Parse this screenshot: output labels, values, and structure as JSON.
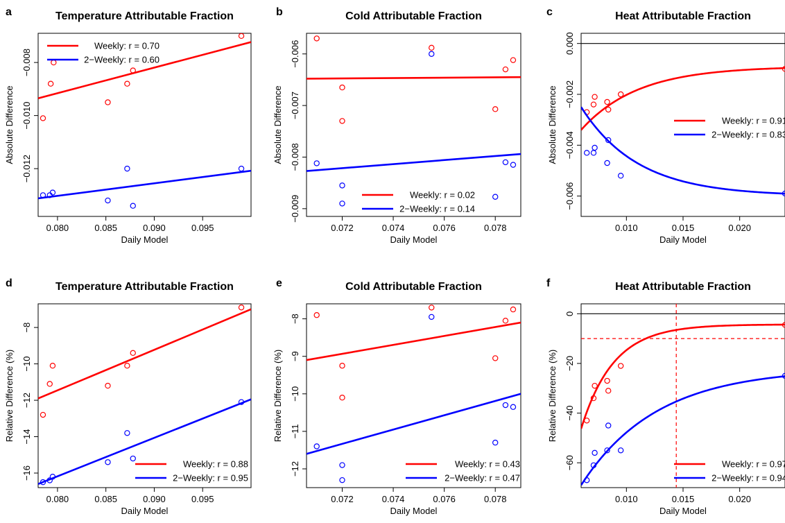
{
  "colors": {
    "weekly": "#ff0000",
    "biweekly": "#0000ff",
    "axis": "#000000"
  },
  "chart_data": [
    {
      "panel": "a",
      "type": "scatter",
      "title": "Temperature Attributable Fraction",
      "xlabel": "Daily Model",
      "ylabel": "Absolute Difference",
      "xlim": [
        0.078,
        0.1
      ],
      "ylim": [
        -0.0138,
        -0.0069
      ],
      "xticks": [
        {
          "v": 0.08,
          "label": "0.080"
        },
        {
          "v": 0.085,
          "label": "0.085"
        },
        {
          "v": 0.09,
          "label": "0.090"
        },
        {
          "v": 0.095,
          "label": "0.095"
        }
      ],
      "yticks": [
        {
          "v": -0.008,
          "label": "−0.008"
        },
        {
          "v": -0.01,
          "label": "−0.010"
        },
        {
          "v": -0.012,
          "label": "−0.012"
        }
      ],
      "legend_position": "top-left",
      "series": [
        {
          "name": "Weekly: r = 0.70",
          "color": "weekly",
          "points": [
            [
              0.0785,
              -0.0101
            ],
            [
              0.0793,
              -0.0088
            ],
            [
              0.0796,
              -0.008
            ],
            [
              0.0852,
              -0.0095
            ],
            [
              0.0872,
              -0.0088
            ],
            [
              0.0878,
              -0.0083
            ],
            [
              0.099,
              -0.007
            ]
          ],
          "fit": {
            "kind": "linear",
            "from": [
              0.078,
              -0.00935
            ],
            "to": [
              0.1,
              -0.00723
            ]
          }
        },
        {
          "name": "2−Weekly: r = 0.60",
          "color": "biweekly",
          "points": [
            [
              0.0785,
              -0.013
            ],
            [
              0.0792,
              -0.013
            ],
            [
              0.0795,
              -0.0129
            ],
            [
              0.0852,
              -0.0132
            ],
            [
              0.0872,
              -0.012
            ],
            [
              0.0878,
              -0.0134
            ],
            [
              0.099,
              -0.012
            ]
          ],
          "fit": {
            "kind": "linear",
            "from": [
              0.078,
              -0.01312
            ],
            "to": [
              0.1,
              -0.01208
            ]
          }
        }
      ]
    },
    {
      "panel": "b",
      "type": "scatter",
      "title": "Cold Attributable Fraction",
      "xlabel": "Daily Model",
      "ylabel": "Absolute Difference",
      "xlim": [
        0.0706,
        0.079
      ],
      "ylim": [
        -0.00915,
        -0.0056
      ],
      "xticks": [
        {
          "v": 0.072,
          "label": "0.072"
        },
        {
          "v": 0.074,
          "label": "0.074"
        },
        {
          "v": 0.076,
          "label": "0.076"
        },
        {
          "v": 0.078,
          "label": "0.078"
        }
      ],
      "yticks": [
        {
          "v": -0.006,
          "label": "−0.006"
        },
        {
          "v": -0.007,
          "label": "−0.007"
        },
        {
          "v": -0.008,
          "label": "−0.008"
        },
        {
          "v": -0.009,
          "label": "−0.009"
        }
      ],
      "legend_position": "bottom-right",
      "series": [
        {
          "name": "Weekly: r = 0.02",
          "color": "weekly",
          "points": [
            [
              0.071,
              -0.0057
            ],
            [
              0.072,
              -0.00665
            ],
            [
              0.072,
              -0.0073
            ],
            [
              0.0755,
              -0.00588
            ],
            [
              0.078,
              -0.00707
            ],
            [
              0.0784,
              -0.0063
            ],
            [
              0.0787,
              -0.00612
            ]
          ],
          "fit": {
            "kind": "linear",
            "from": [
              0.0706,
              -0.00648
            ],
            "to": [
              0.079,
              -0.00645
            ]
          }
        },
        {
          "name": "2−Weekly: r = 0.14",
          "color": "biweekly",
          "points": [
            [
              0.071,
              -0.00812
            ],
            [
              0.072,
              -0.00855
            ],
            [
              0.072,
              -0.0089
            ],
            [
              0.0755,
              -0.006
            ],
            [
              0.078,
              -0.00877
            ],
            [
              0.0784,
              -0.0081
            ],
            [
              0.0787,
              -0.00815
            ]
          ],
          "fit": {
            "kind": "linear",
            "from": [
              0.0706,
              -0.00827
            ],
            "to": [
              0.079,
              -0.00794
            ]
          }
        }
      ]
    },
    {
      "panel": "c",
      "type": "scatter",
      "title": "Heat Attributable Fraction",
      "xlabel": "Daily Model",
      "ylabel": "Absolute Difference",
      "xlim": [
        0.006,
        0.024
      ],
      "ylim": [
        -0.0068,
        0.0004
      ],
      "xticks": [
        {
          "v": 0.01,
          "label": "0.010"
        },
        {
          "v": 0.015,
          "label": "0.015"
        },
        {
          "v": 0.02,
          "label": "0.020"
        }
      ],
      "yticks": [
        {
          "v": 0.0,
          "label": "0.000"
        },
        {
          "v": -0.002,
          "label": "−0.002"
        },
        {
          "v": -0.004,
          "label": "−0.004"
        },
        {
          "v": -0.006,
          "label": "−0.006"
        }
      ],
      "hlines": [
        {
          "y": 0,
          "color": "axis",
          "dashed": false
        }
      ],
      "legend_position": "right",
      "series": [
        {
          "name": "Weekly: r = 0.91",
          "color": "weekly",
          "points": [
            [
              0.0065,
              -0.0027
            ],
            [
              0.0071,
              -0.0024
            ],
            [
              0.0072,
              -0.0021
            ],
            [
              0.0083,
              -0.0023
            ],
            [
              0.0084,
              -0.0026
            ],
            [
              0.0095,
              -0.002
            ],
            [
              0.024,
              -0.001
            ]
          ],
          "fit": {
            "kind": "exp",
            "a": -0.0009,
            "b": -0.0025,
            "k": 200
          }
        },
        {
          "name": "2−Weekly: r = 0.83",
          "color": "biweekly",
          "points": [
            [
              0.0065,
              -0.0043
            ],
            [
              0.0071,
              -0.0043
            ],
            [
              0.0072,
              -0.0041
            ],
            [
              0.0083,
              -0.0047
            ],
            [
              0.0084,
              -0.0038
            ],
            [
              0.0095,
              -0.0052
            ],
            [
              0.024,
              -0.0059
            ]
          ],
          "fit": {
            "kind": "exp",
            "a": -0.006,
            "b": 0.0035,
            "k": 200
          }
        }
      ]
    },
    {
      "panel": "d",
      "type": "scatter",
      "title": "Temperature Attributable Fraction",
      "xlabel": "Daily Model",
      "ylabel": "Relative Difference (%)",
      "xlim": [
        0.078,
        0.1
      ],
      "ylim": [
        -16.8,
        -6.7
      ],
      "xticks": [
        {
          "v": 0.08,
          "label": "0.080"
        },
        {
          "v": 0.085,
          "label": "0.085"
        },
        {
          "v": 0.09,
          "label": "0.090"
        },
        {
          "v": 0.095,
          "label": "0.095"
        }
      ],
      "yticks": [
        {
          "v": -8,
          "label": "−8"
        },
        {
          "v": -10,
          "label": "−10"
        },
        {
          "v": -12,
          "label": "−12"
        },
        {
          "v": -14,
          "label": "−14"
        },
        {
          "v": -16,
          "label": "−16"
        }
      ],
      "legend_position": "bottom-right",
      "series": [
        {
          "name": "Weekly: r = 0.88",
          "color": "weekly",
          "points": [
            [
              0.0785,
              -12.8
            ],
            [
              0.0792,
              -11.1
            ],
            [
              0.0795,
              -10.1
            ],
            [
              0.0852,
              -11.2
            ],
            [
              0.0872,
              -10.1
            ],
            [
              0.0878,
              -9.4
            ],
            [
              0.099,
              -6.9
            ]
          ],
          "fit": {
            "kind": "linear",
            "from": [
              0.078,
              -11.9
            ],
            "to": [
              0.1,
              -7.0
            ]
          }
        },
        {
          "name": "2−Weekly: r = 0.95",
          "color": "biweekly",
          "points": [
            [
              0.0785,
              -16.5
            ],
            [
              0.0792,
              -16.4
            ],
            [
              0.0795,
              -16.2
            ],
            [
              0.0852,
              -15.4
            ],
            [
              0.0872,
              -13.8
            ],
            [
              0.0878,
              -15.2
            ],
            [
              0.099,
              -12.1
            ]
          ],
          "fit": {
            "kind": "linear",
            "from": [
              0.078,
              -16.6
            ],
            "to": [
              0.1,
              -11.95
            ]
          }
        }
      ]
    },
    {
      "panel": "e",
      "type": "scatter",
      "title": "Cold Attributable Fraction",
      "xlabel": "Daily Model",
      "ylabel": "Relative Difference (%)",
      "xlim": [
        0.0706,
        0.079
      ],
      "ylim": [
        -12.5,
        -7.6
      ],
      "xticks": [
        {
          "v": 0.072,
          "label": "0.072"
        },
        {
          "v": 0.074,
          "label": "0.074"
        },
        {
          "v": 0.076,
          "label": "0.076"
        },
        {
          "v": 0.078,
          "label": "0.078"
        }
      ],
      "yticks": [
        {
          "v": -8,
          "label": "−8"
        },
        {
          "v": -9,
          "label": "−9"
        },
        {
          "v": -10,
          "label": "−10"
        },
        {
          "v": -11,
          "label": "−11"
        },
        {
          "v": -12,
          "label": "−12"
        }
      ],
      "legend_position": "bottom-right",
      "series": [
        {
          "name": "Weekly: r = 0.43",
          "color": "weekly",
          "points": [
            [
              0.071,
              -7.9
            ],
            [
              0.072,
              -9.25
            ],
            [
              0.072,
              -10.1
            ],
            [
              0.0755,
              -7.7
            ],
            [
              0.078,
              -9.05
            ],
            [
              0.0784,
              -8.05
            ],
            [
              0.0787,
              -7.75
            ]
          ],
          "fit": {
            "kind": "linear",
            "from": [
              0.0706,
              -9.1
            ],
            "to": [
              0.079,
              -8.1
            ]
          }
        },
        {
          "name": "2−Weekly: r = 0.47",
          "color": "biweekly",
          "points": [
            [
              0.071,
              -11.4
            ],
            [
              0.072,
              -11.9
            ],
            [
              0.072,
              -12.3
            ],
            [
              0.0755,
              -7.95
            ],
            [
              0.078,
              -11.3
            ],
            [
              0.0784,
              -10.3
            ],
            [
              0.0787,
              -10.35
            ]
          ],
          "fit": {
            "kind": "linear",
            "from": [
              0.0706,
              -11.6
            ],
            "to": [
              0.079,
              -10.0
            ]
          }
        }
      ]
    },
    {
      "panel": "f",
      "type": "scatter",
      "title": "Heat Attributable Fraction",
      "xlabel": "Daily Model",
      "ylabel": "Relative Difference (%)",
      "xlim": [
        0.006,
        0.024
      ],
      "ylim": [
        -70,
        4
      ],
      "xticks": [
        {
          "v": 0.01,
          "label": "0.010"
        },
        {
          "v": 0.015,
          "label": "0.015"
        },
        {
          "v": 0.02,
          "label": "0.020"
        }
      ],
      "yticks": [
        {
          "v": 0,
          "label": "0"
        },
        {
          "v": -20,
          "label": "−20"
        },
        {
          "v": -40,
          "label": "−40"
        },
        {
          "v": -60,
          "label": "−60"
        }
      ],
      "hlines": [
        {
          "y": 0,
          "color": "axis",
          "dashed": false
        },
        {
          "y": -10,
          "color": "weekly",
          "dashed": true
        }
      ],
      "vlines": [
        {
          "x": 0.0144,
          "color": "weekly",
          "dashed": true
        }
      ],
      "legend_position": "bottom-right",
      "series": [
        {
          "name": "Weekly: r = 0.97",
          "color": "weekly",
          "points": [
            [
              0.0065,
              -43
            ],
            [
              0.0071,
              -34
            ],
            [
              0.0072,
              -29
            ],
            [
              0.0083,
              -27
            ],
            [
              0.0084,
              -31
            ],
            [
              0.0095,
              -21
            ],
            [
              0.024,
              -4.5
            ]
          ],
          "fit": {
            "kind": "exp",
            "a": -4.3,
            "b": -42,
            "k": 350,
            "x0": 0.006
          }
        },
        {
          "name": "2−Weekly: r = 0.94",
          "color": "biweekly",
          "points": [
            [
              0.0065,
              -67
            ],
            [
              0.0071,
              -61
            ],
            [
              0.0072,
              -56
            ],
            [
              0.0083,
              -55
            ],
            [
              0.0084,
              -45
            ],
            [
              0.0095,
              -55
            ],
            [
              0.024,
              -25
            ]
          ],
          "fit": {
            "kind": "exp",
            "a": -22,
            "b": -47,
            "k": 150,
            "x0": 0.006
          }
        }
      ]
    }
  ]
}
